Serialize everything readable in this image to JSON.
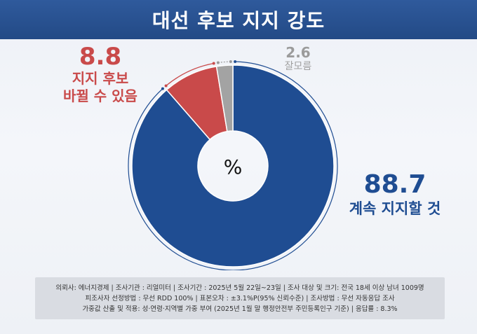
{
  "header": {
    "title": "대선 후보 지지 강도"
  },
  "chart_data": {
    "type": "pie",
    "unit": "%",
    "categories": [
      "계속 지지할 것",
      "지지 후보 바뀔 수 있음",
      "잘 모름"
    ],
    "values": [
      88.7,
      8.8,
      2.6
    ],
    "colors": [
      "#1f4d92",
      "#c94a4a",
      "#a3a3a3"
    ]
  },
  "labels": {
    "blue_value": "88.7",
    "blue_text": "계속 지지할 것",
    "red_value": "8.8",
    "red_text_line1": "지지 후보",
    "red_text_line2": "바뀔 수 있음",
    "gray_value": "2.6",
    "gray_text": "잘모름",
    "center_unit": "%"
  },
  "footer": {
    "line1": "의뢰사: 에너지경제 | 조사기관 : 리얼미터  |  조사기간 : 2025년 5월 22일~23일 | 조사 대상 및 크기: 전국 18세 이상 남녀 1009명",
    "line2": "피조사자 선정방법 : 무선 RDD 100% | 표본오차 : ±3.1%P(95% 신뢰수준) | 조사방법 : 무선 자동응답 조사",
    "line3": "가중값 산출 및 적용: 성·연령·지역별 가중 부여 (2025년 1월 말 행정안전부 주민등록인구 기준) | 응답률 : 8.3%"
  }
}
